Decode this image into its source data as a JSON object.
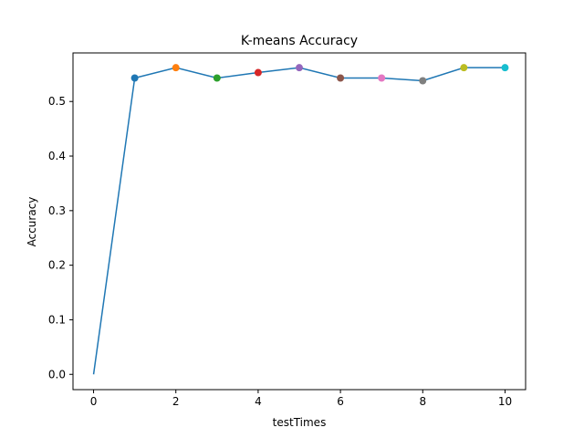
{
  "chart_data": {
    "type": "line",
    "title": "K-means Accuracy",
    "xlabel": "testTimes",
    "ylabel": "Accuracy",
    "xlim": [
      -0.5,
      10.5
    ],
    "ylim": [
      -0.028,
      0.589
    ],
    "x_ticks": [
      0,
      2,
      4,
      6,
      8,
      10
    ],
    "y_ticks": [
      0.0,
      0.1,
      0.2,
      0.3,
      0.4,
      0.5
    ],
    "x_tick_labels": [
      "0",
      "2",
      "4",
      "6",
      "8",
      "10"
    ],
    "y_tick_labels": [
      "0.0",
      "0.1",
      "0.2",
      "0.3",
      "0.4",
      "0.5"
    ],
    "grid": false,
    "series": [
      {
        "x": [
          0,
          1,
          2,
          3,
          4,
          5,
          6,
          7,
          8,
          9,
          10
        ],
        "y": [
          0.0,
          0.543,
          0.562,
          0.543,
          0.553,
          0.562,
          0.543,
          0.543,
          0.538,
          0.562,
          0.562
        ],
        "color": "#1f77b4"
      }
    ],
    "markers": [
      {
        "x": 1,
        "y": 0.543,
        "color": "#1f77b4"
      },
      {
        "x": 2,
        "y": 0.562,
        "color": "#ff7f0e"
      },
      {
        "x": 3,
        "y": 0.543,
        "color": "#2ca02c"
      },
      {
        "x": 4,
        "y": 0.553,
        "color": "#d62728"
      },
      {
        "x": 5,
        "y": 0.562,
        "color": "#9467bd"
      },
      {
        "x": 6,
        "y": 0.543,
        "color": "#8c564b"
      },
      {
        "x": 7,
        "y": 0.543,
        "color": "#e377c2"
      },
      {
        "x": 8,
        "y": 0.538,
        "color": "#7f7f7f"
      },
      {
        "x": 9,
        "y": 0.562,
        "color": "#bcbd22"
      },
      {
        "x": 10,
        "y": 0.562,
        "color": "#17becf"
      }
    ]
  }
}
